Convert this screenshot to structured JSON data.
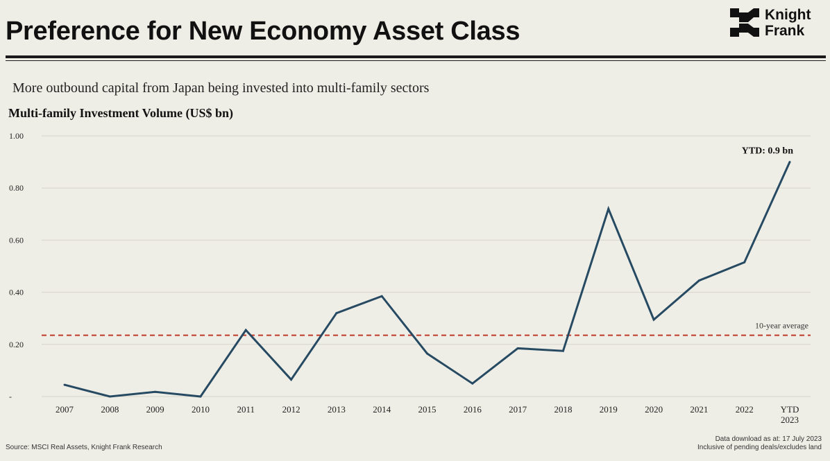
{
  "header": {
    "title": "Preference for New Economy Asset Class",
    "logo_line1": "Knight",
    "logo_line2": "Frank"
  },
  "subtitle": "More outbound capital from Japan being invested into multi-family sectors",
  "chart_data": {
    "type": "line",
    "title": "Multi-family Investment Volume (US$ bn)",
    "categories": [
      "2007",
      "2008",
      "2009",
      "2010",
      "2011",
      "2012",
      "2013",
      "2014",
      "2015",
      "2016",
      "2017",
      "2018",
      "2019",
      "2020",
      "2021",
      "2022",
      "YTD 2023"
    ],
    "series": [
      {
        "values": [
          0.045,
          0.0,
          0.018,
          0.0,
          0.255,
          0.065,
          0.32,
          0.385,
          0.165,
          0.05,
          0.185,
          0.175,
          0.72,
          0.295,
          0.445,
          0.515,
          0.9
        ],
        "color": "#274a63"
      }
    ],
    "ylim": [
      0,
      1.0
    ],
    "yticks": [
      0,
      0.2,
      0.4,
      0.6,
      0.8,
      1.0
    ],
    "ytick_labels": [
      "-",
      "0.20",
      "0.40",
      "0.60",
      "0.80",
      "1.00"
    ],
    "grid": true,
    "reference_line": {
      "value": 0.235,
      "label": "10-year average",
      "color": "#c0392b"
    },
    "annotation": {
      "text": "YTD: 0.9 bn",
      "category": "YTD 2023"
    }
  },
  "footer": {
    "source": "Source: MSCI Real Assets, Knight Frank Research",
    "note_line1": "Data download as at: 17 July 2023",
    "note_line2": "Inclusive of pending deals/excludes land"
  }
}
